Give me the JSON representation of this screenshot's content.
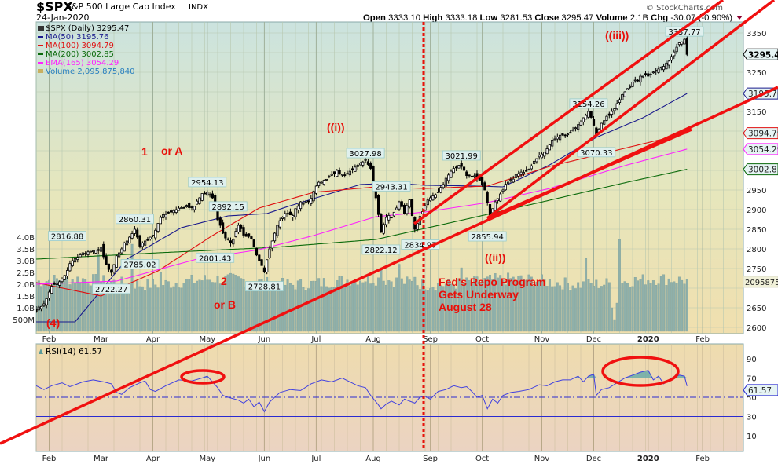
{
  "header": {
    "symbol": "$SPX",
    "name": "S&P 500 Large Cap Index",
    "exchange": "INDX",
    "date": "24-Jan-2020",
    "open_label": "Open",
    "open": "3333.10",
    "high_label": "High",
    "high": "3333.18",
    "low_label": "Low",
    "low": "3281.53",
    "close_label": "Close",
    "close": "3295.47",
    "volume_label": "Volume",
    "volume": "2.1B",
    "chg_label": "Chg",
    "chg": "-30.07 (-0.90%)",
    "watermark": "© StockCharts.com"
  },
  "legend": {
    "price": "$SPX (Daily) 3295.47",
    "ma50": "MA(50) 3195.76",
    "ma100": "MA(100) 3094.79",
    "ma200": "MA(200) 3002.85",
    "ema165": "EMA(165) 3054.29",
    "volume": "Volume 2,095,875,840",
    "rsi": "RSI(14) 61.57"
  },
  "colors": {
    "ma50": "#1a1a8c",
    "ma100": "#e01010",
    "ma200": "#0a6a0a",
    "ema165": "#ff20ff",
    "volume": "#8fb0aa",
    "rsi": "#4040e0",
    "annotation": "#e8100a"
  },
  "chart_data": [
    {
      "type": "candlestick",
      "title": "$SPX S&P 500 Large Cap Index (Daily)",
      "x_unit": "trading day index (0 = 23-Jan-2019)",
      "months": [
        {
          "label": "Feb",
          "day": 5
        },
        {
          "label": "Mar",
          "day": 25
        },
        {
          "label": "Apr",
          "day": 45
        },
        {
          "label": "May",
          "day": 66
        },
        {
          "label": "Jun",
          "day": 88
        },
        {
          "label": "Jul",
          "day": 108
        },
        {
          "label": "Aug",
          "day": 130
        },
        {
          "label": "Sep",
          "day": 152
        },
        {
          "label": "Oct",
          "day": 172
        },
        {
          "label": "Nov",
          "day": 195
        },
        {
          "label": "Dec",
          "day": 215
        },
        {
          "label": "2020",
          "day": 236
        },
        {
          "label": "Feb",
          "day": 257
        }
      ],
      "ylim": [
        2600,
        3375
      ],
      "yticks": [
        2600,
        2650,
        2700,
        2750,
        2800,
        2850,
        2900,
        2950,
        3000,
        3050,
        3100,
        3150,
        3200,
        3250,
        3300,
        3350
      ],
      "close_anchors": [
        [
          0,
          2640
        ],
        [
          3,
          2660
        ],
        [
          6,
          2705
        ],
        [
          10,
          2720
        ],
        [
          14,
          2770
        ],
        [
          18,
          2790
        ],
        [
          22,
          2795
        ],
        [
          25,
          2800
        ],
        [
          27,
          2760
        ],
        [
          29,
          2740
        ],
        [
          31,
          2780
        ],
        [
          35,
          2820
        ],
        [
          38,
          2850
        ],
        [
          40,
          2810
        ],
        [
          42,
          2820
        ],
        [
          45,
          2835
        ],
        [
          48,
          2880
        ],
        [
          52,
          2895
        ],
        [
          56,
          2905
        ],
        [
          60,
          2905
        ],
        [
          63,
          2930
        ],
        [
          66,
          2945
        ],
        [
          68,
          2930
        ],
        [
          70,
          2880
        ],
        [
          72,
          2840
        ],
        [
          75,
          2815
        ],
        [
          78,
          2860
        ],
        [
          80,
          2835
        ],
        [
          83,
          2825
        ],
        [
          86,
          2770
        ],
        [
          88,
          2745
        ],
        [
          90,
          2800
        ],
        [
          93,
          2860
        ],
        [
          96,
          2890
        ],
        [
          99,
          2885
        ],
        [
          102,
          2920
        ],
        [
          105,
          2920
        ],
        [
          108,
          2960
        ],
        [
          111,
          2975
        ],
        [
          114,
          2990
        ],
        [
          116,
          3000
        ],
        [
          118,
          2985
        ],
        [
          121,
          2995
        ],
        [
          124,
          3015
        ],
        [
          127,
          3025
        ],
        [
          129,
          3005
        ],
        [
          131,
          2930
        ],
        [
          133,
          2845
        ],
        [
          135,
          2880
        ],
        [
          137,
          2880
        ],
        [
          140,
          2920
        ],
        [
          142,
          2895
        ],
        [
          144,
          2925
        ],
        [
          146,
          2850
        ],
        [
          148,
          2880
        ],
        [
          150,
          2910
        ],
        [
          152,
          2930
        ],
        [
          155,
          2945
        ],
        [
          158,
          2980
        ],
        [
          161,
          3005
        ],
        [
          164,
          3010
        ],
        [
          166,
          2990
        ],
        [
          168,
          2985
        ],
        [
          171,
          2975
        ],
        [
          173,
          2950
        ],
        [
          175,
          2885
        ],
        [
          177,
          2920
        ],
        [
          179,
          2940
        ],
        [
          182,
          2970
        ],
        [
          185,
          2990
        ],
        [
          188,
          2995
        ],
        [
          190,
          3000
        ],
        [
          193,
          3035
        ],
        [
          196,
          3045
        ],
        [
          199,
          3075
        ],
        [
          202,
          3090
        ],
        [
          205,
          3090
        ],
        [
          208,
          3110
        ],
        [
          211,
          3130
        ],
        [
          213,
          3150
        ],
        [
          215,
          3115
        ],
        [
          216,
          3090
        ],
        [
          218,
          3120
        ],
        [
          221,
          3140
        ],
        [
          224,
          3170
        ],
        [
          227,
          3200
        ],
        [
          230,
          3225
        ],
        [
          233,
          3240
        ],
        [
          236,
          3240
        ],
        [
          239,
          3255
        ],
        [
          242,
          3265
        ],
        [
          245,
          3290
        ],
        [
          248,
          3325
        ],
        [
          250,
          3330
        ],
        [
          251,
          3295.47
        ]
      ],
      "ma50": [
        [
          0,
          2614
        ],
        [
          15,
          2614
        ],
        [
          35,
          2774
        ],
        [
          56,
          2854
        ],
        [
          74,
          2884
        ],
        [
          89,
          2890
        ],
        [
          98,
          2910
        ],
        [
          125,
          2964
        ],
        [
          138,
          2968
        ],
        [
          150,
          2962
        ],
        [
          171,
          2960
        ],
        [
          180,
          2958
        ],
        [
          198,
          3014
        ],
        [
          216,
          3084
        ],
        [
          234,
          3134
        ],
        [
          251,
          3195.76
        ]
      ],
      "ma100": [
        [
          0,
          2714
        ],
        [
          25,
          2680
        ],
        [
          47,
          2744
        ],
        [
          68,
          2834
        ],
        [
          86,
          2904
        ],
        [
          107,
          2944
        ],
        [
          131,
          2958
        ],
        [
          150,
          2954
        ],
        [
          174,
          2960
        ],
        [
          198,
          3010
        ],
        [
          228,
          3058
        ],
        [
          251,
          3094.79
        ]
      ],
      "ma200": [
        [
          0,
          2774
        ],
        [
          47,
          2790
        ],
        [
          92,
          2804
        ],
        [
          131,
          2824
        ],
        [
          162,
          2870
        ],
        [
          198,
          2924
        ],
        [
          228,
          2970
        ],
        [
          251,
          3002.85
        ]
      ],
      "ema165": [
        [
          0,
          2710
        ],
        [
          31,
          2718
        ],
        [
          62,
          2774
        ],
        [
          86,
          2798
        ],
        [
          107,
          2834
        ],
        [
          131,
          2882
        ],
        [
          150,
          2894
        ],
        [
          174,
          2918
        ],
        [
          198,
          2954
        ],
        [
          228,
          3014
        ],
        [
          251,
          3054.29
        ]
      ],
      "point_labels": [
        {
          "day": 12,
          "value": 2816.88,
          "text": "2816.88",
          "pos": "above"
        },
        {
          "day": 29,
          "value": 2722.27,
          "text": "2722.27",
          "pos": "below"
        },
        {
          "day": 38,
          "value": 2860.31,
          "text": "2860.31",
          "pos": "above"
        },
        {
          "day": 40,
          "value": 2785.02,
          "text": "2785.02",
          "pos": "below"
        },
        {
          "day": 66,
          "value": 2954.13,
          "text": "2954.13",
          "pos": "above"
        },
        {
          "day": 69,
          "value": 2801.43,
          "text": "2801.43",
          "pos": "below"
        },
        {
          "day": 74,
          "value": 2892.15,
          "text": "2892.15",
          "pos": "above"
        },
        {
          "day": 88,
          "value": 2728.81,
          "text": "2728.81",
          "pos": "below"
        },
        {
          "day": 127,
          "value": 3027.98,
          "text": "3027.98",
          "pos": "above"
        },
        {
          "day": 133,
          "value": 2822.12,
          "text": "2822.12",
          "pos": "below"
        },
        {
          "day": 137,
          "value": 2943.31,
          "text": "2943.31",
          "pos": "above"
        },
        {
          "day": 146,
          "value": 2834.97,
          "text": "2834.97",
          "pos": "below"
        },
        {
          "day": 164,
          "value": 3021.99,
          "text": "3021.99",
          "pos": "above"
        },
        {
          "day": 174,
          "value": 2855.94,
          "text": "2855.94",
          "pos": "below"
        },
        {
          "day": 213,
          "value": 3154.26,
          "text": "3154.26",
          "pos": "above"
        },
        {
          "day": 216,
          "value": 3070.33,
          "text": "3070.33",
          "pos": "below"
        },
        {
          "day": 250,
          "value": 3337.77,
          "text": "3337.77",
          "pos": "above"
        }
      ],
      "right_tags": [
        {
          "value": 3295.47,
          "text": "3295.47",
          "color": "#000000"
        },
        {
          "value": 3195.76,
          "text": "3195.76",
          "color": "#1a1a8c"
        },
        {
          "value": 3094.79,
          "text": "3094.79",
          "color": "#e01010"
        },
        {
          "value": 3054.29,
          "text": "3054.29",
          "color": "#ff20ff"
        },
        {
          "value": 3002.85,
          "text": "3002.85",
          "color": "#0a6a0a"
        }
      ],
      "annotations": {
        "wave1": "1",
        "wave1_alt": "or A",
        "wave_i": "((i))",
        "wave_ii": "((ii))",
        "wave_iii": "((iii))",
        "wave2": "2",
        "wave2_alt": "or B",
        "wave4": "(4)",
        "fed1": "Fed's Repo Program",
        "fed2": "Gets Underway",
        "fed3": "August 28"
      }
    },
    {
      "type": "bar",
      "title": "Volume",
      "unit": "billions",
      "yticks": [
        {
          "v": 0.5,
          "t": "500M"
        },
        {
          "v": 1.0,
          "t": "1.0B"
        },
        {
          "v": 1.5,
          "t": "1.5B"
        },
        {
          "v": 2.0,
          "t": "2.0B"
        },
        {
          "v": 2.5,
          "t": "2.5B"
        },
        {
          "v": 3.0,
          "t": "3.0B"
        },
        {
          "v": 3.5,
          "t": "3.5B"
        },
        {
          "v": 4.0,
          "t": "4.0B"
        }
      ],
      "base": 2.1,
      "spikes": [
        [
          24,
          3.25
        ],
        [
          37,
          3.7
        ],
        [
          48,
          2.5
        ],
        [
          133,
          2.7
        ],
        [
          140,
          2.85
        ],
        [
          146,
          2.3
        ],
        [
          164,
          2.7
        ],
        [
          212,
          3.1
        ],
        [
          222,
          1.0
        ],
        [
          223,
          0.5
        ],
        [
          224,
          1.2
        ],
        [
          225,
          3.9
        ]
      ],
      "last_tag": "2095875"
    },
    {
      "type": "line",
      "title": "RSI(14)",
      "ylim": [
        0,
        100
      ],
      "yticks": [
        10,
        30,
        50,
        70,
        90
      ],
      "hlines": [
        30,
        50,
        70
      ],
      "last": "61.57",
      "values": [
        [
          0,
          62
        ],
        [
          3,
          58
        ],
        [
          6,
          62
        ],
        [
          10,
          65
        ],
        [
          13,
          61
        ],
        [
          18,
          66
        ],
        [
          22,
          68
        ],
        [
          26,
          66
        ],
        [
          29,
          64
        ],
        [
          31,
          55
        ],
        [
          33,
          53
        ],
        [
          36,
          60
        ],
        [
          40,
          65
        ],
        [
          42,
          67
        ],
        [
          44,
          58
        ],
        [
          46,
          56
        ],
        [
          50,
          62
        ],
        [
          55,
          68
        ],
        [
          60,
          67
        ],
        [
          64,
          70
        ],
        [
          66,
          72
        ],
        [
          68,
          66
        ],
        [
          70,
          60
        ],
        [
          72,
          52
        ],
        [
          74,
          50
        ],
        [
          78,
          47
        ],
        [
          80,
          44
        ],
        [
          82,
          48
        ],
        [
          84,
          40
        ],
        [
          86,
          45
        ],
        [
          88,
          35
        ],
        [
          90,
          45
        ],
        [
          94,
          55
        ],
        [
          98,
          58
        ],
        [
          102,
          57
        ],
        [
          106,
          64
        ],
        [
          110,
          68
        ],
        [
          114,
          66
        ],
        [
          118,
          70
        ],
        [
          121,
          66
        ],
        [
          124,
          62
        ],
        [
          127,
          60
        ],
        [
          129,
          52
        ],
        [
          132,
          42
        ],
        [
          133,
          38
        ],
        [
          135,
          43
        ],
        [
          137,
          46
        ],
        [
          140,
          42
        ],
        [
          142,
          48
        ],
        [
          146,
          44
        ],
        [
          148,
          50
        ],
        [
          150,
          51
        ],
        [
          152,
          48
        ],
        [
          155,
          56
        ],
        [
          158,
          58
        ],
        [
          161,
          62
        ],
        [
          164,
          60
        ],
        [
          166,
          61
        ],
        [
          168,
          56
        ],
        [
          170,
          50
        ],
        [
          172,
          52
        ],
        [
          174,
          38
        ],
        [
          176,
          48
        ],
        [
          178,
          44
        ],
        [
          180,
          52
        ],
        [
          183,
          55
        ],
        [
          186,
          56
        ],
        [
          190,
          58
        ],
        [
          194,
          63
        ],
        [
          197,
          62
        ],
        [
          200,
          66
        ],
        [
          203,
          68
        ],
        [
          206,
          68
        ],
        [
          209,
          72
        ],
        [
          211,
          66
        ],
        [
          213,
          72
        ],
        [
          215,
          74
        ],
        [
          216,
          52
        ],
        [
          218,
          58
        ],
        [
          221,
          60
        ],
        [
          224,
          65
        ],
        [
          227,
          70
        ],
        [
          230,
          73
        ],
        [
          233,
          76
        ],
        [
          236,
          78
        ],
        [
          238,
          68
        ],
        [
          240,
          72
        ],
        [
          242,
          64
        ],
        [
          245,
          70
        ],
        [
          248,
          73
        ],
        [
          250,
          72
        ],
        [
          251,
          61.57
        ]
      ]
    }
  ]
}
